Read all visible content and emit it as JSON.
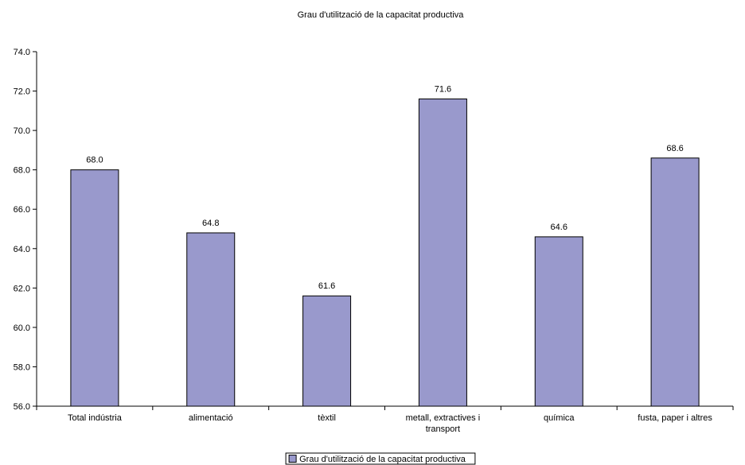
{
  "chart_data": {
    "type": "bar",
    "title": "Grau d'utilització de la capacitat productiva",
    "categories": [
      [
        "Total indústria"
      ],
      [
        "alimentació"
      ],
      [
        "tèxtil"
      ],
      [
        "metall, extractives i",
        "transport"
      ],
      [
        "química"
      ],
      [
        "fusta, paper i altres"
      ]
    ],
    "series": [
      {
        "name": "Grau d'utilització de la capacitat productiva",
        "values": [
          68.0,
          64.8,
          61.6,
          71.6,
          64.6,
          68.6
        ],
        "labels": [
          "68.0",
          "64.8",
          "61.6",
          "71.6",
          "64.6",
          "68.6"
        ],
        "color": "#9999cc"
      }
    ],
    "ylim": [
      56.0,
      74.0
    ],
    "yticks": [
      "56.0",
      "58.0",
      "60.0",
      "62.0",
      "64.0",
      "66.0",
      "68.0",
      "70.0",
      "72.0",
      "74.0"
    ],
    "grid": false,
    "legend": "bottom"
  }
}
